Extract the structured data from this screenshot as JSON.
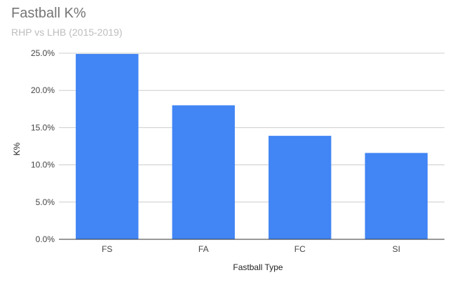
{
  "chart_data": {
    "type": "bar",
    "title": "Fastball K%",
    "subtitle": "RHP vs LHB (2015-2019)",
    "xlabel": "Fastball Type",
    "ylabel": "K%",
    "categories": [
      "FS",
      "FA",
      "FC",
      "SI"
    ],
    "values": [
      24.9,
      18.0,
      13.9,
      11.6
    ],
    "ylim": [
      0,
      25
    ],
    "yticks": [
      0,
      5,
      10,
      15,
      20,
      25
    ],
    "ytick_labels": [
      "0.0%",
      "5.0%",
      "10.0%",
      "15.0%",
      "20.0%",
      "25.0%"
    ],
    "grid": true,
    "legend": "none",
    "bar_color": "#4285f4"
  }
}
